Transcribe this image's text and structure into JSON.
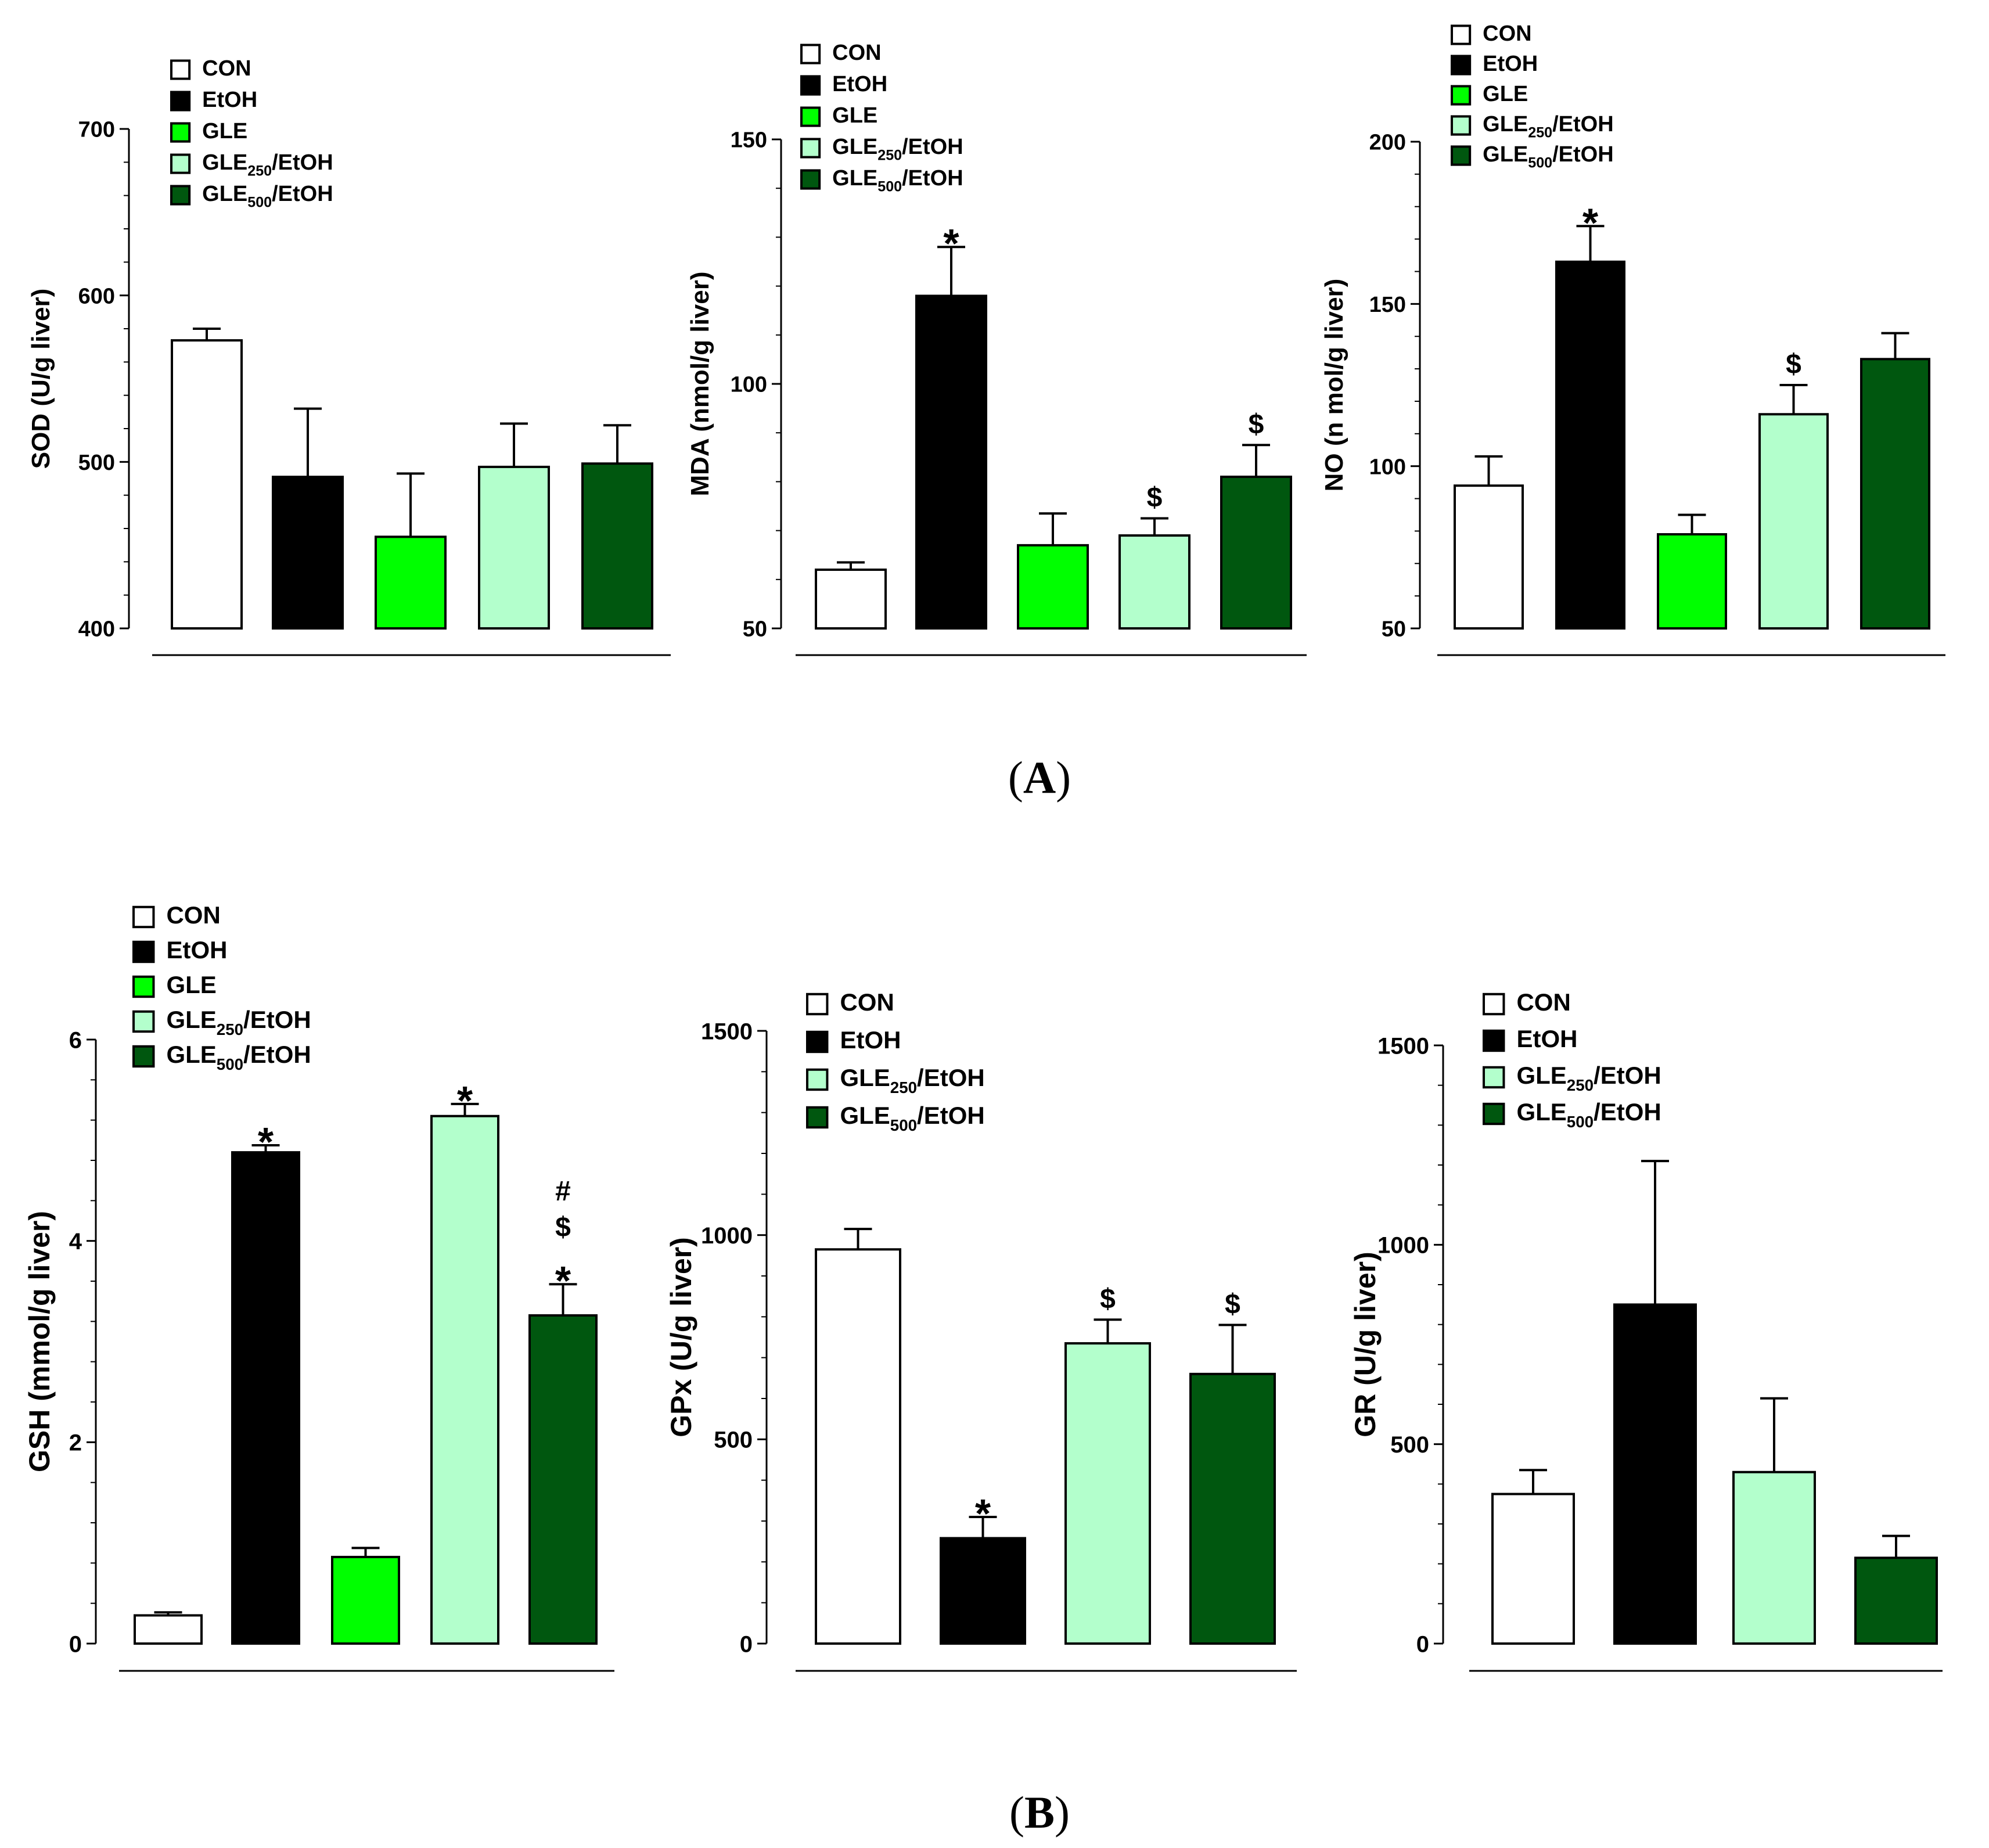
{
  "colors": {
    "CON": "#ffffff",
    "EtOH": "#000000",
    "GLE": "#00ff00",
    "GLE250": "#b3ffcc",
    "GLE500": "#00570f"
  },
  "panel_labels": {
    "A": {
      "open": "(",
      "letter": "A",
      "close": ")"
    },
    "B": {
      "open": "(",
      "letter": "B",
      "close": ")"
    }
  },
  "chart_data": [
    {
      "type": "bar",
      "panel": "A",
      "ylabel": "SOD (U/g liver)",
      "ylim": [
        400,
        700
      ],
      "yticks": [
        400,
        500,
        600,
        700
      ],
      "legend": [
        {
          "key": "CON",
          "base": "CON",
          "sub": "",
          "rest": ""
        },
        {
          "key": "EtOH",
          "base": "EtOH",
          "sub": "",
          "rest": ""
        },
        {
          "key": "GLE",
          "base": "GLE",
          "sub": "",
          "rest": ""
        },
        {
          "key": "GLE250",
          "base": "GLE",
          "sub": "250",
          "rest": "/EtOH"
        },
        {
          "key": "GLE500",
          "base": "GLE",
          "sub": "500",
          "rest": "/EtOH"
        }
      ],
      "bars": [
        {
          "key": "CON",
          "value": 573,
          "error": 7,
          "marks": []
        },
        {
          "key": "EtOH",
          "value": 491,
          "error": 41,
          "marks": []
        },
        {
          "key": "GLE",
          "value": 455,
          "error": 38,
          "marks": []
        },
        {
          "key": "GLE250",
          "value": 497,
          "error": 26,
          "marks": []
        },
        {
          "key": "GLE500",
          "value": 499,
          "error": 23,
          "marks": []
        }
      ]
    },
    {
      "type": "bar",
      "panel": "A",
      "ylabel": "MDA (nmol/g liver)",
      "ylim": [
        50,
        150
      ],
      "yticks": [
        50,
        100,
        150
      ],
      "legend": [
        {
          "key": "CON",
          "base": "CON",
          "sub": "",
          "rest": ""
        },
        {
          "key": "EtOH",
          "base": "EtOH",
          "sub": "",
          "rest": ""
        },
        {
          "key": "GLE",
          "base": "GLE",
          "sub": "",
          "rest": ""
        },
        {
          "key": "GLE250",
          "base": "GLE",
          "sub": "250",
          "rest": "/EtOH"
        },
        {
          "key": "GLE500",
          "base": "GLE",
          "sub": "500",
          "rest": "/EtOH"
        }
      ],
      "bars": [
        {
          "key": "CON",
          "value": 62,
          "error": 1.5,
          "marks": []
        },
        {
          "key": "EtOH",
          "value": 118,
          "error": 10,
          "marks": [
            "*"
          ]
        },
        {
          "key": "GLE",
          "value": 67,
          "error": 6.5,
          "marks": []
        },
        {
          "key": "GLE250",
          "value": 69,
          "error": 3.5,
          "marks": [
            "$"
          ]
        },
        {
          "key": "GLE500",
          "value": 81,
          "error": 6.5,
          "marks": [
            "$"
          ]
        }
      ]
    },
    {
      "type": "bar",
      "panel": "A",
      "ylabel": "NO (n mol/g liver)",
      "ylim": [
        50,
        200
      ],
      "yticks": [
        50,
        100,
        150,
        200
      ],
      "legend": [
        {
          "key": "CON",
          "base": "CON",
          "sub": "",
          "rest": ""
        },
        {
          "key": "EtOH",
          "base": "EtOH",
          "sub": "",
          "rest": ""
        },
        {
          "key": "GLE",
          "base": "GLE",
          "sub": "",
          "rest": ""
        },
        {
          "key": "GLE250",
          "base": "GLE",
          "sub": "250",
          "rest": "/EtOH"
        },
        {
          "key": "GLE500",
          "base": "GLE",
          "sub": "500",
          "rest": "/EtOH"
        }
      ],
      "bars": [
        {
          "key": "CON",
          "value": 94,
          "error": 9,
          "marks": []
        },
        {
          "key": "EtOH",
          "value": 163,
          "error": 11,
          "marks": [
            "*"
          ]
        },
        {
          "key": "GLE",
          "value": 79,
          "error": 6,
          "marks": []
        },
        {
          "key": "GLE250",
          "value": 116,
          "error": 9,
          "marks": [
            "$"
          ]
        },
        {
          "key": "GLE500",
          "value": 133,
          "error": 8,
          "marks": []
        }
      ]
    },
    {
      "type": "bar",
      "panel": "B",
      "ylabel": "GSH (mmol/g liver)",
      "ylim": [
        0,
        6
      ],
      "yticks": [
        0,
        2,
        4,
        6
      ],
      "legend": [
        {
          "key": "CON",
          "base": "CON",
          "sub": "",
          "rest": ""
        },
        {
          "key": "EtOH",
          "base": "EtOH",
          "sub": "",
          "rest": ""
        },
        {
          "key": "GLE",
          "base": "GLE",
          "sub": "",
          "rest": ""
        },
        {
          "key": "GLE250",
          "base": "GLE",
          "sub": "250",
          "rest": "/EtOH"
        },
        {
          "key": "GLE500",
          "base": "GLE",
          "sub": "500",
          "rest": "/EtOH"
        }
      ],
      "bars": [
        {
          "key": "CON",
          "value": 0.28,
          "error": 0.03,
          "marks": []
        },
        {
          "key": "EtOH",
          "value": 4.88,
          "error": 0.07,
          "marks": [
            "*"
          ]
        },
        {
          "key": "GLE",
          "value": 0.86,
          "error": 0.09,
          "marks": []
        },
        {
          "key": "GLE250",
          "value": 5.24,
          "error": 0.12,
          "marks": [
            "*"
          ]
        },
        {
          "key": "GLE500",
          "value": 3.26,
          "error": 0.31,
          "marks": [
            "*",
            "$",
            "#"
          ]
        }
      ]
    },
    {
      "type": "bar",
      "panel": "B",
      "ylabel": "GPx (U/g liver)",
      "ylim": [
        0,
        1500
      ],
      "yticks": [
        0,
        500,
        1000,
        1500
      ],
      "legend": [
        {
          "key": "CON",
          "base": "CON",
          "sub": "",
          "rest": ""
        },
        {
          "key": "EtOH",
          "base": "EtOH",
          "sub": "",
          "rest": ""
        },
        {
          "key": "GLE250",
          "base": "GLE",
          "sub": "250",
          "rest": "/EtOH"
        },
        {
          "key": "GLE500",
          "base": "GLE",
          "sub": "500",
          "rest": "/EtOH"
        }
      ],
      "bars": [
        {
          "key": "CON",
          "value": 965,
          "error": 50,
          "marks": []
        },
        {
          "key": "EtOH",
          "value": 258,
          "error": 52,
          "marks": [
            "*"
          ]
        },
        {
          "key": "GLE250",
          "value": 735,
          "error": 58,
          "marks": [
            "$"
          ]
        },
        {
          "key": "GLE500",
          "value": 660,
          "error": 120,
          "marks": [
            "$"
          ]
        }
      ]
    },
    {
      "type": "bar",
      "panel": "B",
      "ylabel": "GR (U/g liver)",
      "ylim": [
        0,
        1500
      ],
      "yticks": [
        0,
        500,
        1000,
        1500
      ],
      "legend": [
        {
          "key": "CON",
          "base": "CON",
          "sub": "",
          "rest": ""
        },
        {
          "key": "EtOH",
          "base": "EtOH",
          "sub": "",
          "rest": ""
        },
        {
          "key": "GLE250",
          "base": "GLE",
          "sub": "250",
          "rest": "/EtOH"
        },
        {
          "key": "GLE500",
          "base": "GLE",
          "sub": "500",
          "rest": "/EtOH"
        }
      ],
      "bars": [
        {
          "key": "CON",
          "value": 375,
          "error": 60,
          "marks": []
        },
        {
          "key": "EtOH",
          "value": 850,
          "error": 360,
          "marks": []
        },
        {
          "key": "GLE250",
          "value": 430,
          "error": 185,
          "marks": []
        },
        {
          "key": "GLE500",
          "value": 215,
          "error": 55,
          "marks": []
        }
      ]
    }
  ]
}
